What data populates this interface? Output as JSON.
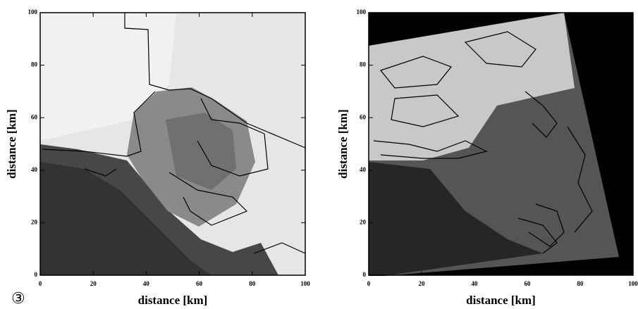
{
  "panel_label": "③",
  "chart_data": [
    {
      "type": "image",
      "x_label": "distance [km]",
      "y_label": "distance [km]",
      "xlim": [
        0,
        100
      ],
      "ylim": [
        0,
        100
      ],
      "xticks": [
        0,
        20,
        40,
        60,
        80,
        100
      ],
      "yticks": [
        0,
        20,
        40,
        60,
        80,
        100
      ]
    },
    {
      "type": "image",
      "x_label": "distance [km]",
      "y_label": "distance [km]",
      "xlim": [
        0,
        100
      ],
      "ylim": [
        0,
        100
      ],
      "xticks": [
        0,
        20,
        40,
        60,
        80,
        100
      ],
      "yticks": [
        0,
        20,
        40,
        60,
        80,
        100
      ]
    }
  ]
}
